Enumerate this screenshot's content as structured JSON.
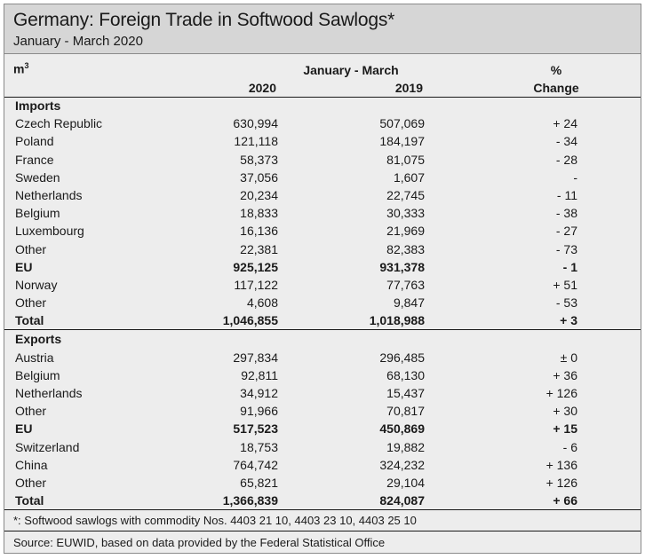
{
  "title": "Germany: Foreign Trade in Softwood Sawlogs*",
  "subtitle": "January - March 2020",
  "header": {
    "unit": "m",
    "unit_sup": "3",
    "period": "January - March",
    "col_a": "2020",
    "col_b": "2019",
    "pct": "%",
    "change": "Change"
  },
  "sections": [
    {
      "label": "Imports",
      "rows": [
        {
          "name": "Czech Republic",
          "v2020": "630,994",
          "v2019": "507,069",
          "change": "+ 24"
        },
        {
          "name": "Poland",
          "v2020": "121,118",
          "v2019": "184,197",
          "change": "- 34"
        },
        {
          "name": "France",
          "v2020": "58,373",
          "v2019": "81,075",
          "change": "- 28"
        },
        {
          "name": "Sweden",
          "v2020": "37,056",
          "v2019": "1,607",
          "change": "-"
        },
        {
          "name": "Netherlands",
          "v2020": "20,234",
          "v2019": "22,745",
          "change": "- 11"
        },
        {
          "name": "Belgium",
          "v2020": "18,833",
          "v2019": "30,333",
          "change": "- 38"
        },
        {
          "name": "Luxembourg",
          "v2020": "16,136",
          "v2019": "21,969",
          "change": "- 27"
        },
        {
          "name": "Other",
          "v2020": "22,381",
          "v2019": "82,383",
          "change": "- 73"
        },
        {
          "name": "EU",
          "v2020": "925,125",
          "v2019": "931,378",
          "change": "- 1",
          "bold": true
        },
        {
          "name": "Norway",
          "v2020": "117,122",
          "v2019": "77,763",
          "change": "+ 51"
        },
        {
          "name": "Other",
          "v2020": "4,608",
          "v2019": "9,847",
          "change": "- 53"
        },
        {
          "name": "Total",
          "v2020": "1,046,855",
          "v2019": "1,018,988",
          "change": "+ 3",
          "bold": true
        }
      ]
    },
    {
      "label": "Exports",
      "rows": [
        {
          "name": "Austria",
          "v2020": "297,834",
          "v2019": "296,485",
          "change": "± 0"
        },
        {
          "name": "Belgium",
          "v2020": "92,811",
          "v2019": "68,130",
          "change": "+ 36"
        },
        {
          "name": "Netherlands",
          "v2020": "34,912",
          "v2019": "15,437",
          "change": "+ 126"
        },
        {
          "name": "Other",
          "v2020": "91,966",
          "v2019": "70,817",
          "change": "+ 30"
        },
        {
          "name": "EU",
          "v2020": "517,523",
          "v2019": "450,869",
          "change": "+ 15",
          "bold": true
        },
        {
          "name": "Switzerland",
          "v2020": "18,753",
          "v2019": "19,882",
          "change": "- 6"
        },
        {
          "name": "China",
          "v2020": "764,742",
          "v2019": "324,232",
          "change": "+ 136"
        },
        {
          "name": "Other",
          "v2020": "65,821",
          "v2019": "29,104",
          "change": "+ 126"
        },
        {
          "name": "Total",
          "v2020": "1,366,839",
          "v2019": "824,087",
          "change": "+ 66",
          "bold": true
        }
      ]
    }
  ],
  "footnote": "*: Softwood sawlogs with commodity Nos. 4403 21 10, 4403 23 10, 4403 25 10",
  "source": "Source: EUWID, based on data provided by the Federal Statistical Office"
}
